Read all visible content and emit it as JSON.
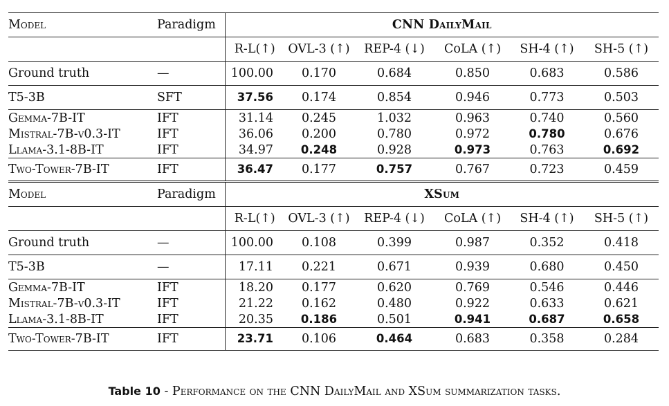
{
  "tables": [
    {
      "header": {
        "model_label": "Model",
        "paradigm_label": "Paradigm",
        "dataset": "CNN DailyMail",
        "metrics": [
          "R-L(↑)",
          "OVL-3 (↑)",
          "REP-4 (↓)",
          "CoLA (↑)",
          "SH-4 (↑)",
          "SH-5 (↑)"
        ]
      },
      "rows": [
        {
          "model": "Ground truth",
          "paradigm": "—",
          "values": [
            "100.00",
            "0.170",
            "0.684",
            "0.850",
            "0.683",
            "0.586"
          ]
        },
        {
          "model": "T5-3B",
          "paradigm": "SFT",
          "values": [
            "37.56",
            "0.174",
            "0.854",
            "0.946",
            "0.773",
            "0.503"
          ]
        },
        {
          "model": "Gemma-7B-IT",
          "paradigm": "IFT",
          "values": [
            "31.14",
            "0.245",
            "1.032",
            "0.963",
            "0.740",
            "0.560"
          ]
        },
        {
          "model": "Mistral-7B-v0.3-IT",
          "paradigm": "IFT",
          "values": [
            "36.06",
            "0.200",
            "0.780",
            "0.972",
            "0.780",
            "0.676"
          ]
        },
        {
          "model": "Llama-3.1-8B-IT",
          "paradigm": "IFT",
          "values": [
            "34.97",
            "0.248",
            "0.928",
            "0.973",
            "0.763",
            "0.692"
          ]
        },
        {
          "model": "Two-Tower-7B-IT",
          "paradigm": "IFT",
          "values": [
            "36.47",
            "0.177",
            "0.757",
            "0.767",
            "0.723",
            "0.459"
          ]
        }
      ]
    },
    {
      "header": {
        "model_label": "Model",
        "paradigm_label": "Paradigm",
        "dataset": "XSum",
        "metrics": [
          "R-L(↑)",
          "OVL-3 (↑)",
          "REP-4 (↓)",
          "CoLA (↑)",
          "SH-4 (↑)",
          "SH-5 (↑)"
        ]
      },
      "rows": [
        {
          "model": "Ground truth",
          "paradigm": "—",
          "values": [
            "100.00",
            "0.108",
            "0.399",
            "0.987",
            "0.352",
            "0.418"
          ]
        },
        {
          "model": "T5-3B",
          "paradigm": "—",
          "values": [
            "17.11",
            "0.221",
            "0.671",
            "0.939",
            "0.680",
            "0.450"
          ]
        },
        {
          "model": "Gemma-7B-IT",
          "paradigm": "IFT",
          "values": [
            "18.20",
            "0.177",
            "0.620",
            "0.769",
            "0.546",
            "0.446"
          ]
        },
        {
          "model": "Mistral-7B-v0.3-IT",
          "paradigm": "IFT",
          "values": [
            "21.22",
            "0.162",
            "0.480",
            "0.922",
            "0.633",
            "0.621"
          ]
        },
        {
          "model": "Llama-3.1-8B-IT",
          "paradigm": "IFT",
          "values": [
            "20.35",
            "0.186",
            "0.501",
            "0.941",
            "0.687",
            "0.658"
          ]
        },
        {
          "model": "Two-Tower-7B-IT",
          "paradigm": "IFT",
          "values": [
            "23.71",
            "0.106",
            "0.464",
            "0.683",
            "0.358",
            "0.284"
          ]
        }
      ]
    }
  ],
  "caption": {
    "label": "Table 10",
    "text": "- Performance on the CNN DailyMail and XSum summarization tasks."
  }
}
